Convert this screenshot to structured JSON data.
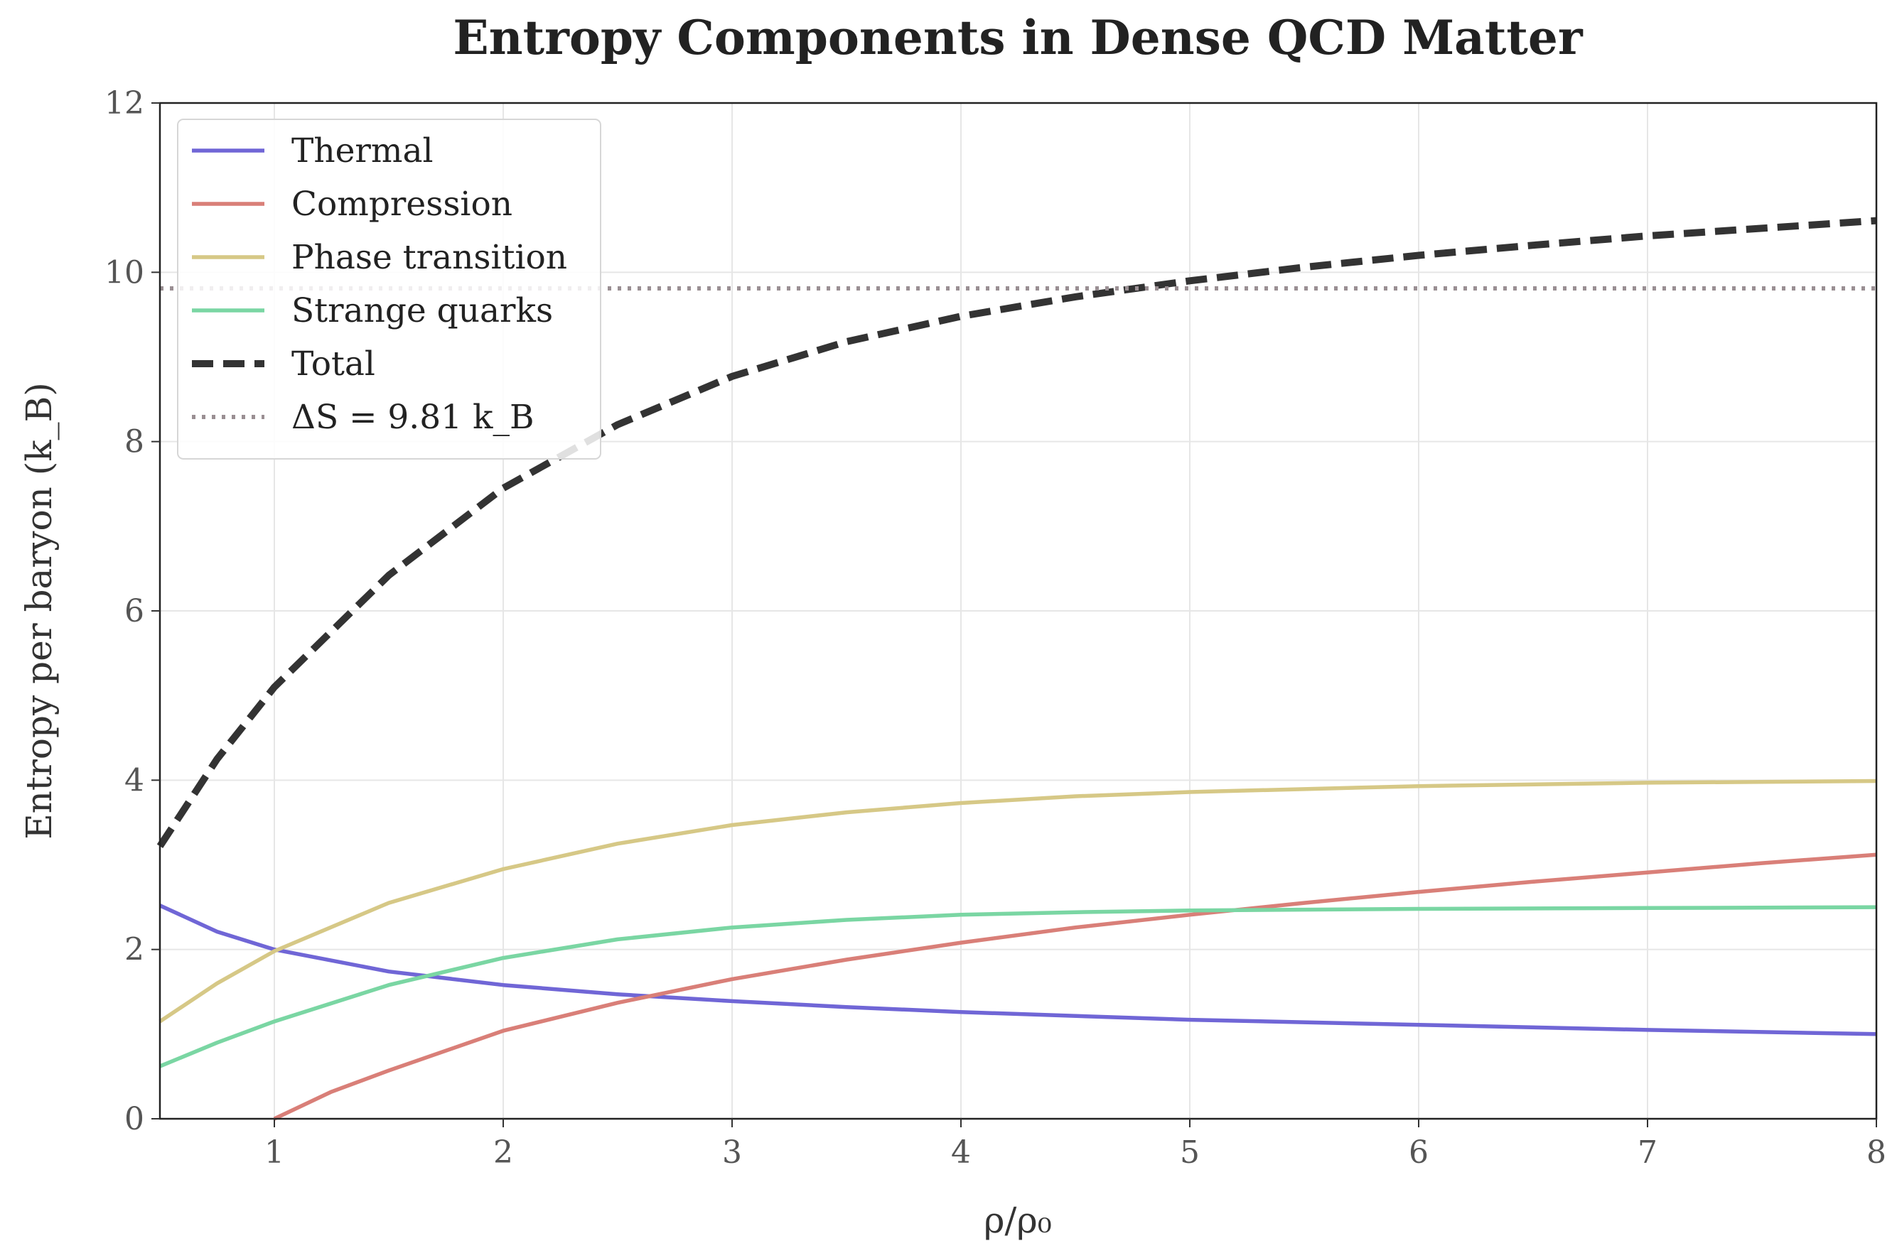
{
  "chart_data": {
    "type": "line",
    "title": "Entropy Components in Dense QCD Matter",
    "xlabel": "ρ/ρ₀",
    "ylabel": "Entropy per baryon (k_B)",
    "xlim": [
      0.5,
      8
    ],
    "ylim": [
      0,
      12
    ],
    "xticks": [
      1,
      2,
      3,
      4,
      5,
      6,
      7,
      8
    ],
    "yticks": [
      0,
      2,
      4,
      6,
      8,
      10,
      12
    ],
    "grid": true,
    "legend_position": "top-left",
    "series": [
      {
        "name": "Thermal",
        "color": "#7066d6",
        "style": "solid",
        "points": [
          [
            0.5,
            2.52
          ],
          [
            0.75,
            2.21
          ],
          [
            1,
            2.0
          ],
          [
            1.5,
            1.74
          ],
          [
            2,
            1.58
          ],
          [
            2.5,
            1.47
          ],
          [
            3,
            1.39
          ],
          [
            3.5,
            1.32
          ],
          [
            4,
            1.26
          ],
          [
            5,
            1.17
          ],
          [
            6,
            1.11
          ],
          [
            7,
            1.05
          ],
          [
            8,
            1.0
          ]
        ]
      },
      {
        "name": "Compression",
        "color": "#d97f78",
        "style": "solid",
        "points": [
          [
            1,
            0.0
          ],
          [
            1.25,
            0.32
          ],
          [
            1.5,
            0.57
          ],
          [
            2,
            1.04
          ],
          [
            2.5,
            1.37
          ],
          [
            3,
            1.65
          ],
          [
            3.5,
            1.88
          ],
          [
            4,
            2.08
          ],
          [
            4.5,
            2.26
          ],
          [
            5,
            2.41
          ],
          [
            5.5,
            2.55
          ],
          [
            6,
            2.68
          ],
          [
            6.5,
            2.8
          ],
          [
            7,
            2.91
          ],
          [
            7.5,
            3.02
          ],
          [
            8,
            3.12
          ]
        ]
      },
      {
        "name": "Phase transition",
        "color": "#d6c886",
        "style": "solid",
        "points": [
          [
            0.5,
            1.15
          ],
          [
            0.75,
            1.6
          ],
          [
            1,
            1.98
          ],
          [
            1.5,
            2.55
          ],
          [
            2,
            2.95
          ],
          [
            2.5,
            3.25
          ],
          [
            3,
            3.47
          ],
          [
            3.5,
            3.62
          ],
          [
            4,
            3.73
          ],
          [
            4.5,
            3.81
          ],
          [
            5,
            3.86
          ],
          [
            6,
            3.93
          ],
          [
            7,
            3.97
          ],
          [
            8,
            3.99
          ]
        ]
      },
      {
        "name": "Strange quarks",
        "color": "#7ad6a3",
        "style": "solid",
        "points": [
          [
            0.5,
            0.62
          ],
          [
            0.75,
            0.9
          ],
          [
            1,
            1.15
          ],
          [
            1.5,
            1.58
          ],
          [
            2,
            1.9
          ],
          [
            2.5,
            2.12
          ],
          [
            3,
            2.26
          ],
          [
            3.5,
            2.35
          ],
          [
            4,
            2.41
          ],
          [
            4.5,
            2.44
          ],
          [
            5,
            2.46
          ],
          [
            6,
            2.48
          ],
          [
            7,
            2.49
          ],
          [
            8,
            2.5
          ]
        ]
      },
      {
        "name": "Total",
        "color": "#333333",
        "style": "dashed",
        "points": [
          [
            0.5,
            3.22
          ],
          [
            0.75,
            4.25
          ],
          [
            1,
            5.1
          ],
          [
            1.5,
            6.42
          ],
          [
            2,
            7.45
          ],
          [
            2.5,
            8.2
          ],
          [
            3,
            8.77
          ],
          [
            3.5,
            9.18
          ],
          [
            4,
            9.48
          ],
          [
            4.5,
            9.71
          ],
          [
            5,
            9.9
          ],
          [
            5.5,
            10.06
          ],
          [
            6,
            10.2
          ],
          [
            6.5,
            10.32
          ],
          [
            7,
            10.43
          ],
          [
            7.5,
            10.52
          ],
          [
            8,
            10.61
          ]
        ]
      },
      {
        "name": "ΔS = 9.81 k_B",
        "color": "#9a8f93",
        "style": "dotted",
        "points": [
          [
            0.5,
            9.81
          ],
          [
            8,
            9.81
          ]
        ]
      }
    ]
  }
}
